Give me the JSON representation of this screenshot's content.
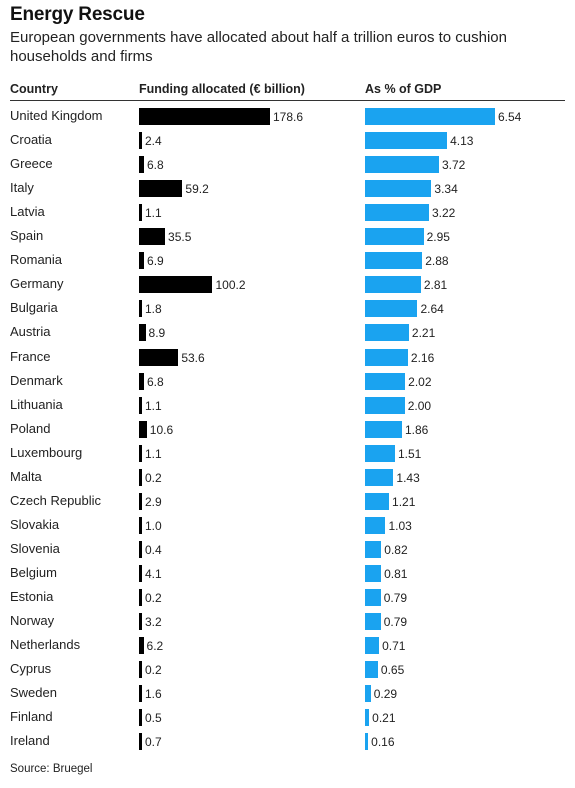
{
  "title": "Energy Rescue",
  "subtitle": "European governments have allocated about half a trillion euros to cushion households and firms",
  "source": "Source: Bruegel",
  "colors": {
    "funding_bar": "#000000",
    "gdp_bar": "#1aa3f0"
  },
  "chart_data": {
    "type": "bar",
    "orientation": "horizontal",
    "columns": [
      "Country",
      "Funding allocated (€ billion)",
      "As % of GDP"
    ],
    "categories": [
      "United Kingdom",
      "Croatia",
      "Greece",
      "Italy",
      "Latvia",
      "Spain",
      "Romania",
      "Germany",
      "Bulgaria",
      "Austria",
      "France",
      "Denmark",
      "Lithuania",
      "Poland",
      "Luxembourg",
      "Malta",
      "Czech Republic",
      "Slovakia",
      "Slovenia",
      "Belgium",
      "Estonia",
      "Norway",
      "Netherlands",
      "Cyprus",
      "Sweden",
      "Finland",
      "Ireland"
    ],
    "series": [
      {
        "name": "Funding allocated (€ billion)",
        "values": [
          178.6,
          2.4,
          6.8,
          59.2,
          1.1,
          35.5,
          6.9,
          100.2,
          1.8,
          8.9,
          53.6,
          6.8,
          1.1,
          10.6,
          1.1,
          0.2,
          2.9,
          1.0,
          0.4,
          4.1,
          0.2,
          3.2,
          6.2,
          0.2,
          1.6,
          0.5,
          0.7
        ],
        "labels": [
          "178.6",
          "2.4",
          "6.8",
          "59.2",
          "1.1",
          "35.5",
          "6.9",
          "100.2",
          "1.8",
          "8.9",
          "53.6",
          "6.8",
          "1.1",
          "10.6",
          "1.1",
          "0.2",
          "2.9",
          "1.0",
          "0.4",
          "4.1",
          "0.2",
          "3.2",
          "6.2",
          "0.2",
          "1.6",
          "0.5",
          "0.7"
        ]
      },
      {
        "name": "As % of GDP",
        "values": [
          6.54,
          4.13,
          3.72,
          3.34,
          3.22,
          2.95,
          2.88,
          2.81,
          2.64,
          2.21,
          2.16,
          2.02,
          2.0,
          1.86,
          1.51,
          1.43,
          1.21,
          1.03,
          0.82,
          0.81,
          0.79,
          0.79,
          0.71,
          0.65,
          0.29,
          0.21,
          0.16
        ],
        "labels": [
          "6.54",
          "4.13",
          "3.72",
          "3.34",
          "3.22",
          "2.95",
          "2.88",
          "2.81",
          "2.64",
          "2.21",
          "2.16",
          "2.02",
          "2.00",
          "1.86",
          "1.51",
          "1.43",
          "1.21",
          "1.03",
          "0.82",
          "0.81",
          "0.79",
          "0.79",
          "0.71",
          "0.65",
          "0.29",
          "0.21",
          "0.16"
        ]
      }
    ]
  }
}
